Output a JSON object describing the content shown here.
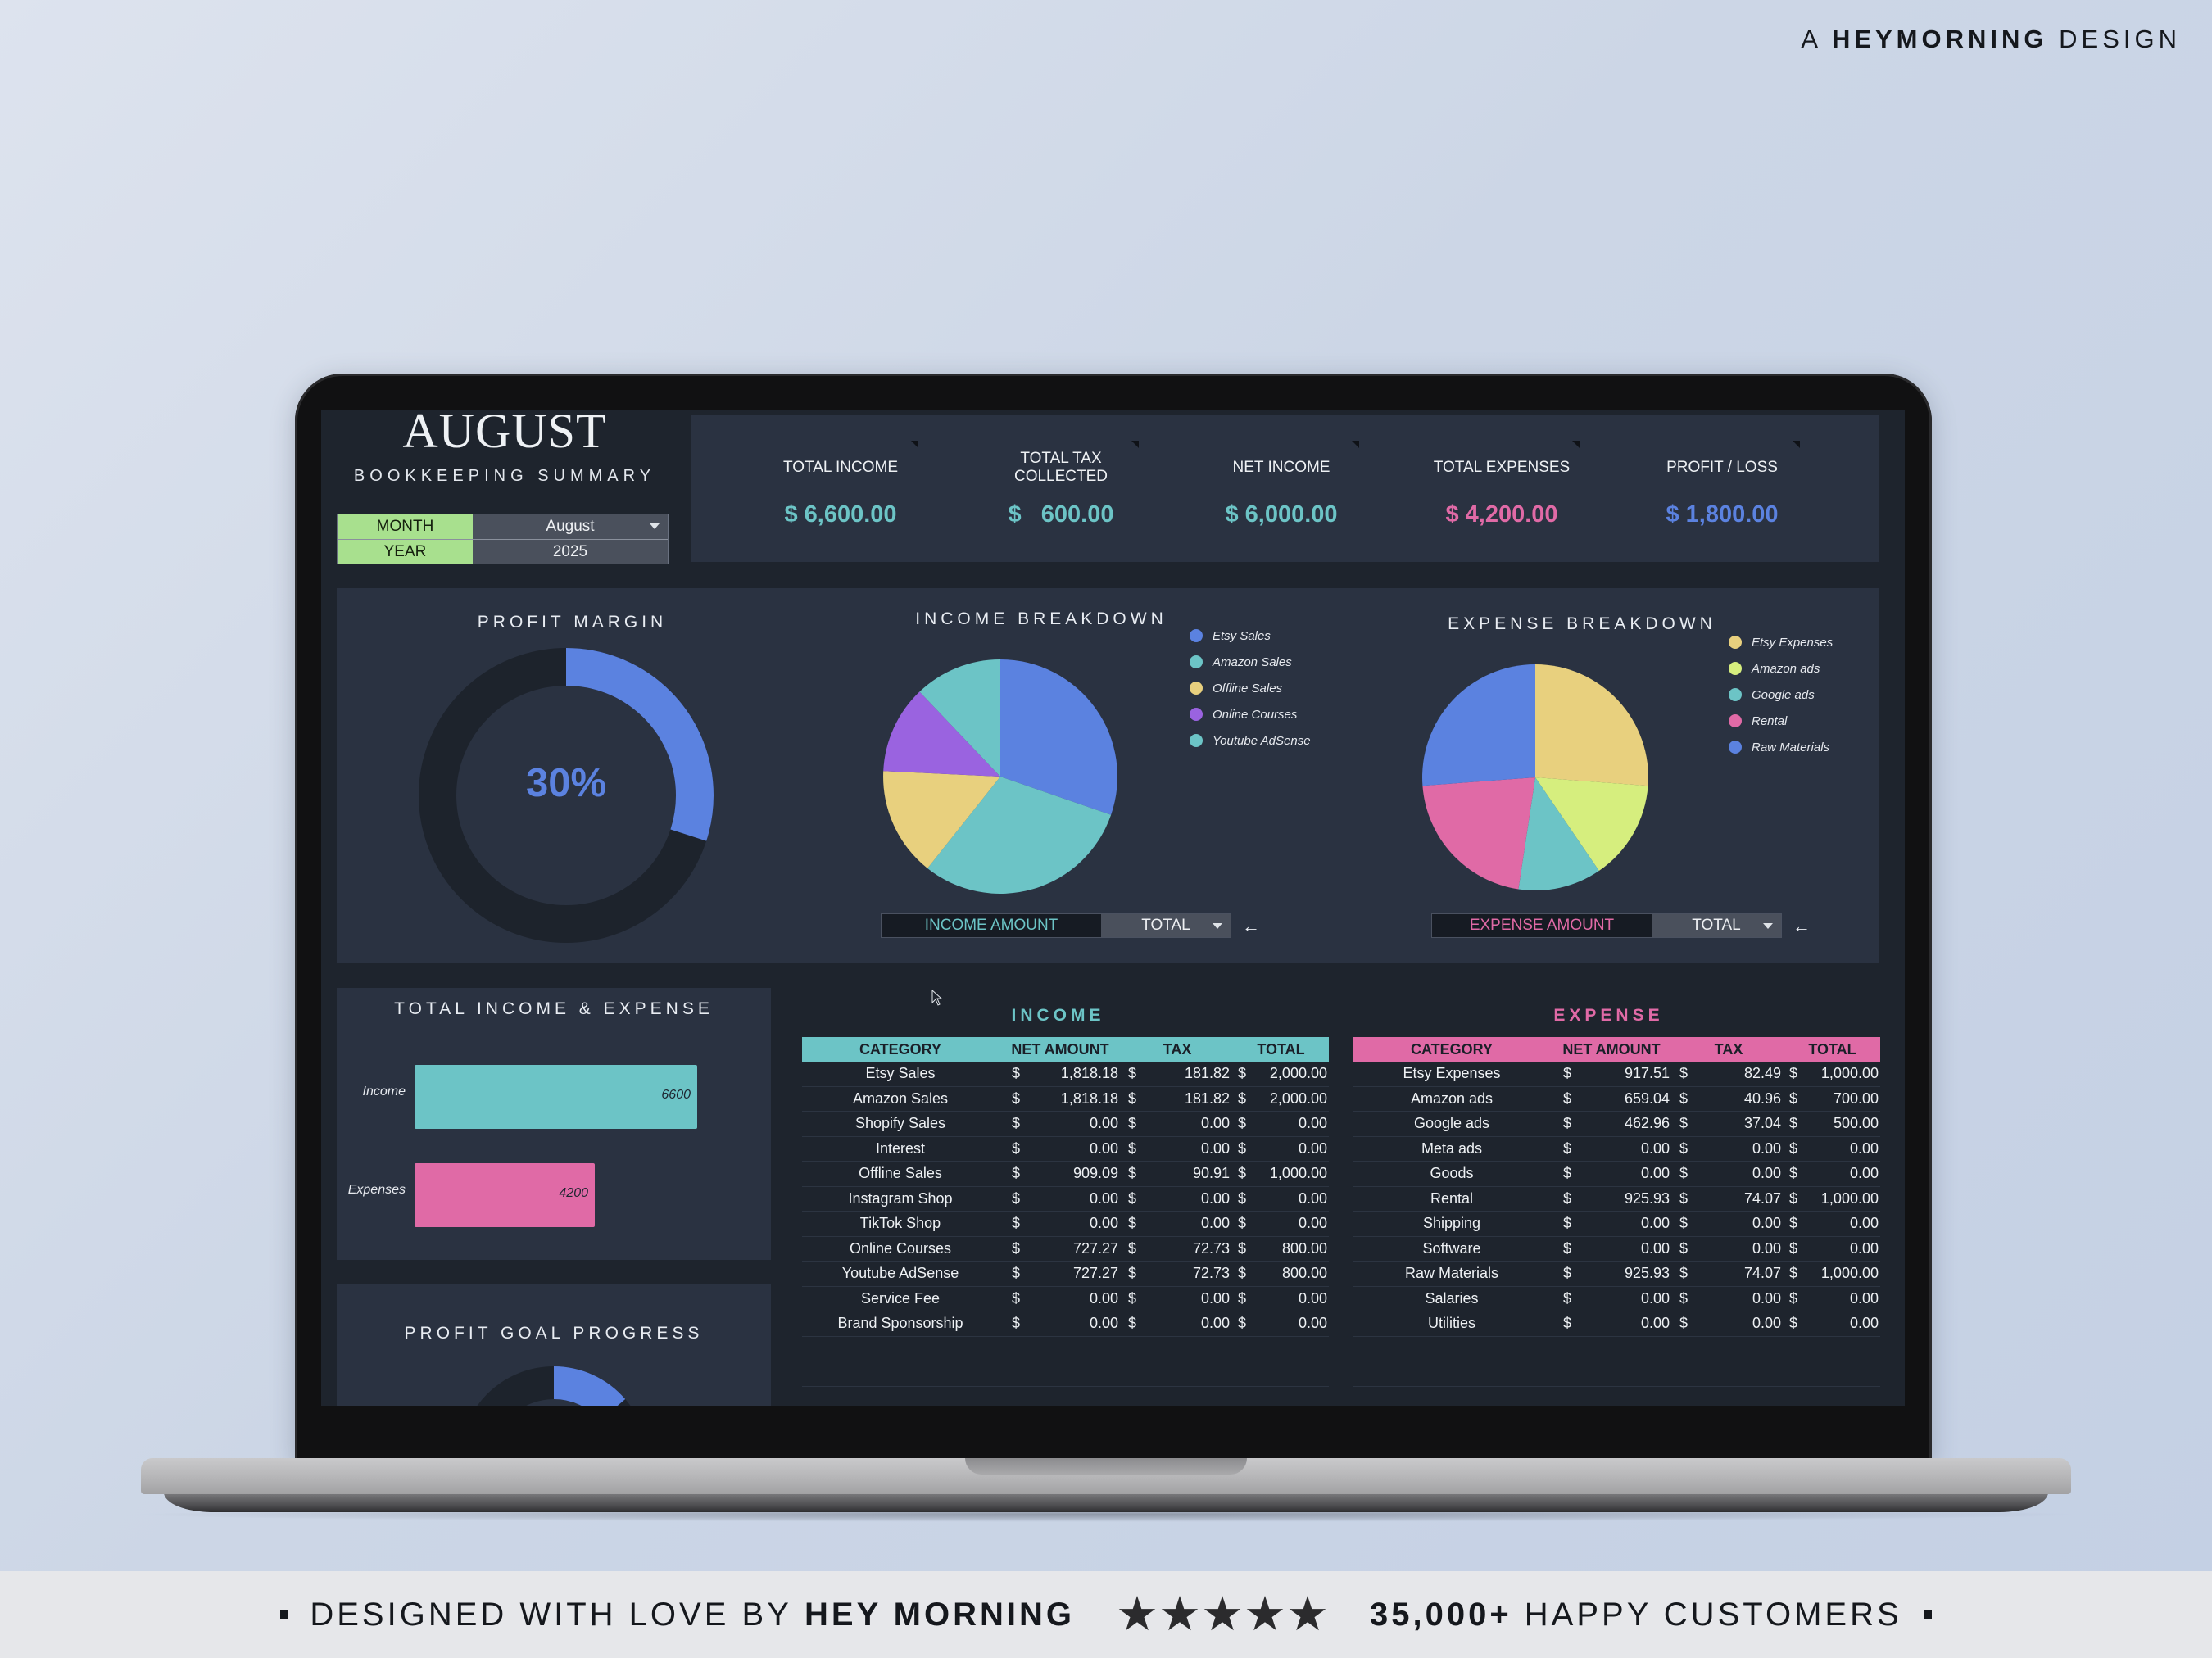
{
  "brand_tag": {
    "prefix": "A",
    "brand": "HEYMORNING",
    "suffix": "DESIGN"
  },
  "header": {
    "month_title": "AUGUST",
    "subtitle": "BOOKKEEPING SUMMARY",
    "selector": {
      "month_label": "MONTH",
      "month_value": "August",
      "year_label": "YEAR",
      "year_value": "2025"
    }
  },
  "kpis": [
    {
      "label": "TOTAL INCOME",
      "value": "$ 6,600.00",
      "color": "#6cc4c6"
    },
    {
      "label": "TOTAL TAX\nCOLLECTED",
      "value": "$   600.00",
      "color": "#6cc4c6"
    },
    {
      "label": "NET INCOME",
      "value": "$ 6,000.00",
      "color": "#6cc4c6"
    },
    {
      "label": "TOTAL EXPENSES",
      "value": "$ 4,200.00",
      "color": "#e06aa6"
    },
    {
      "label": "PROFIT / LOSS",
      "value": "$ 1,800.00",
      "color": "#5b82e0"
    }
  ],
  "profit_margin": {
    "title": "PROFIT MARGIN",
    "value_label": "30%",
    "percent": 30
  },
  "income_breakdown": {
    "title": "INCOME BREAKDOWN",
    "control": {
      "label": "INCOME AMOUNT",
      "value": "TOTAL",
      "arrow": "←"
    }
  },
  "expense_breakdown": {
    "title": "EXPENSE BREAKDOWN",
    "control": {
      "label": "EXPENSE AMOUNT",
      "value": "TOTAL",
      "arrow": "←"
    }
  },
  "totals_chart": {
    "title": "TOTAL INCOME & EXPENSE"
  },
  "profit_goal": {
    "title": "PROFIT GOAL PROGRESS"
  },
  "chart_data": [
    {
      "type": "pie",
      "title": "PROFIT MARGIN",
      "categories": [
        "Profit margin",
        "Remaining"
      ],
      "values": [
        30,
        70
      ],
      "colors": [
        "#5b82e0",
        "#1d232c"
      ],
      "center_label": "30%"
    },
    {
      "type": "pie",
      "title": "INCOME BREAKDOWN",
      "categories": [
        "Etsy Sales",
        "Amazon Sales",
        "Offline Sales",
        "Online Courses",
        "Youtube AdSense"
      ],
      "values": [
        2000,
        2000,
        1000,
        800,
        800
      ],
      "colors": [
        "#5b82e0",
        "#6cc4c6",
        "#e8d07e",
        "#9a63e0",
        "#6cc4c6"
      ],
      "legend_position": "right"
    },
    {
      "type": "pie",
      "title": "EXPENSE BREAKDOWN",
      "categories": [
        "Etsy Expenses",
        "Amazon ads",
        "Google ads",
        "Rental",
        "Raw Materials"
      ],
      "values": [
        1000,
        700,
        500,
        1000,
        1000
      ],
      "colors": [
        "#e8d07e",
        "#d6ee7e",
        "#6cc4c6",
        "#e06aa6",
        "#5b82e0"
      ],
      "legend_position": "right"
    },
    {
      "type": "bar",
      "orientation": "horizontal",
      "title": "TOTAL INCOME & EXPENSE",
      "categories": [
        "Income",
        "Expenses"
      ],
      "values": [
        6600,
        4200
      ],
      "colors": [
        "#6cc4c6",
        "#e06aa6"
      ],
      "data_labels": [
        "6600",
        "4200"
      ],
      "grid": false
    },
    {
      "type": "pie",
      "title": "PROFIT GOAL PROGRESS",
      "note": "gauge partially visible (cut off by screen edge)",
      "colors": [
        "#5b82e0",
        "#1d232c"
      ]
    }
  ],
  "income_table": {
    "title": "INCOME",
    "header_color": "#6cc4c6",
    "columns": [
      "CATEGORY",
      "NET AMOUNT",
      "TAX",
      "TOTAL"
    ],
    "rows": [
      [
        "Etsy Sales",
        "1,818.18",
        "181.82",
        "2,000.00"
      ],
      [
        "Amazon Sales",
        "1,818.18",
        "181.82",
        "2,000.00"
      ],
      [
        "Shopify Sales",
        "0.00",
        "0.00",
        "0.00"
      ],
      [
        "Interest",
        "0.00",
        "0.00",
        "0.00"
      ],
      [
        "Offline Sales",
        "909.09",
        "90.91",
        "1,000.00"
      ],
      [
        "Instagram Shop",
        "0.00",
        "0.00",
        "0.00"
      ],
      [
        "TikTok Shop",
        "0.00",
        "0.00",
        "0.00"
      ],
      [
        "Online Courses",
        "727.27",
        "72.73",
        "800.00"
      ],
      [
        "Youtube AdSense",
        "727.27",
        "72.73",
        "800.00"
      ],
      [
        "Service Fee",
        "0.00",
        "0.00",
        "0.00"
      ],
      [
        "Brand Sponsorship",
        "0.00",
        "0.00",
        "0.00"
      ]
    ],
    "currency": "$"
  },
  "expense_table": {
    "title": "EXPENSE",
    "header_color": "#e06aa6",
    "columns": [
      "CATEGORY",
      "NET AMOUNT",
      "TAX",
      "TOTAL"
    ],
    "rows": [
      [
        "Etsy Expenses",
        "917.51",
        "82.49",
        "1,000.00"
      ],
      [
        "Amazon ads",
        "659.04",
        "40.96",
        "700.00"
      ],
      [
        "Google ads",
        "462.96",
        "37.04",
        "500.00"
      ],
      [
        "Meta ads",
        "0.00",
        "0.00",
        "0.00"
      ],
      [
        "Goods",
        "0.00",
        "0.00",
        "0.00"
      ],
      [
        "Rental",
        "925.93",
        "74.07",
        "1,000.00"
      ],
      [
        "Shipping",
        "0.00",
        "0.00",
        "0.00"
      ],
      [
        "Software",
        "0.00",
        "0.00",
        "0.00"
      ],
      [
        "Raw Materials",
        "925.93",
        "74.07",
        "1,000.00"
      ],
      [
        "Salaries",
        "0.00",
        "0.00",
        "0.00"
      ],
      [
        "Utilities",
        "0.00",
        "0.00",
        "0.00"
      ]
    ],
    "currency": "$"
  },
  "banner": {
    "left_prefix": "DESIGNED WITH LOVE BY",
    "left_brand": "HEY MORNING",
    "stars": 5,
    "right_count": "35,000+",
    "right_suffix": "HAPPY CUSTOMERS"
  }
}
